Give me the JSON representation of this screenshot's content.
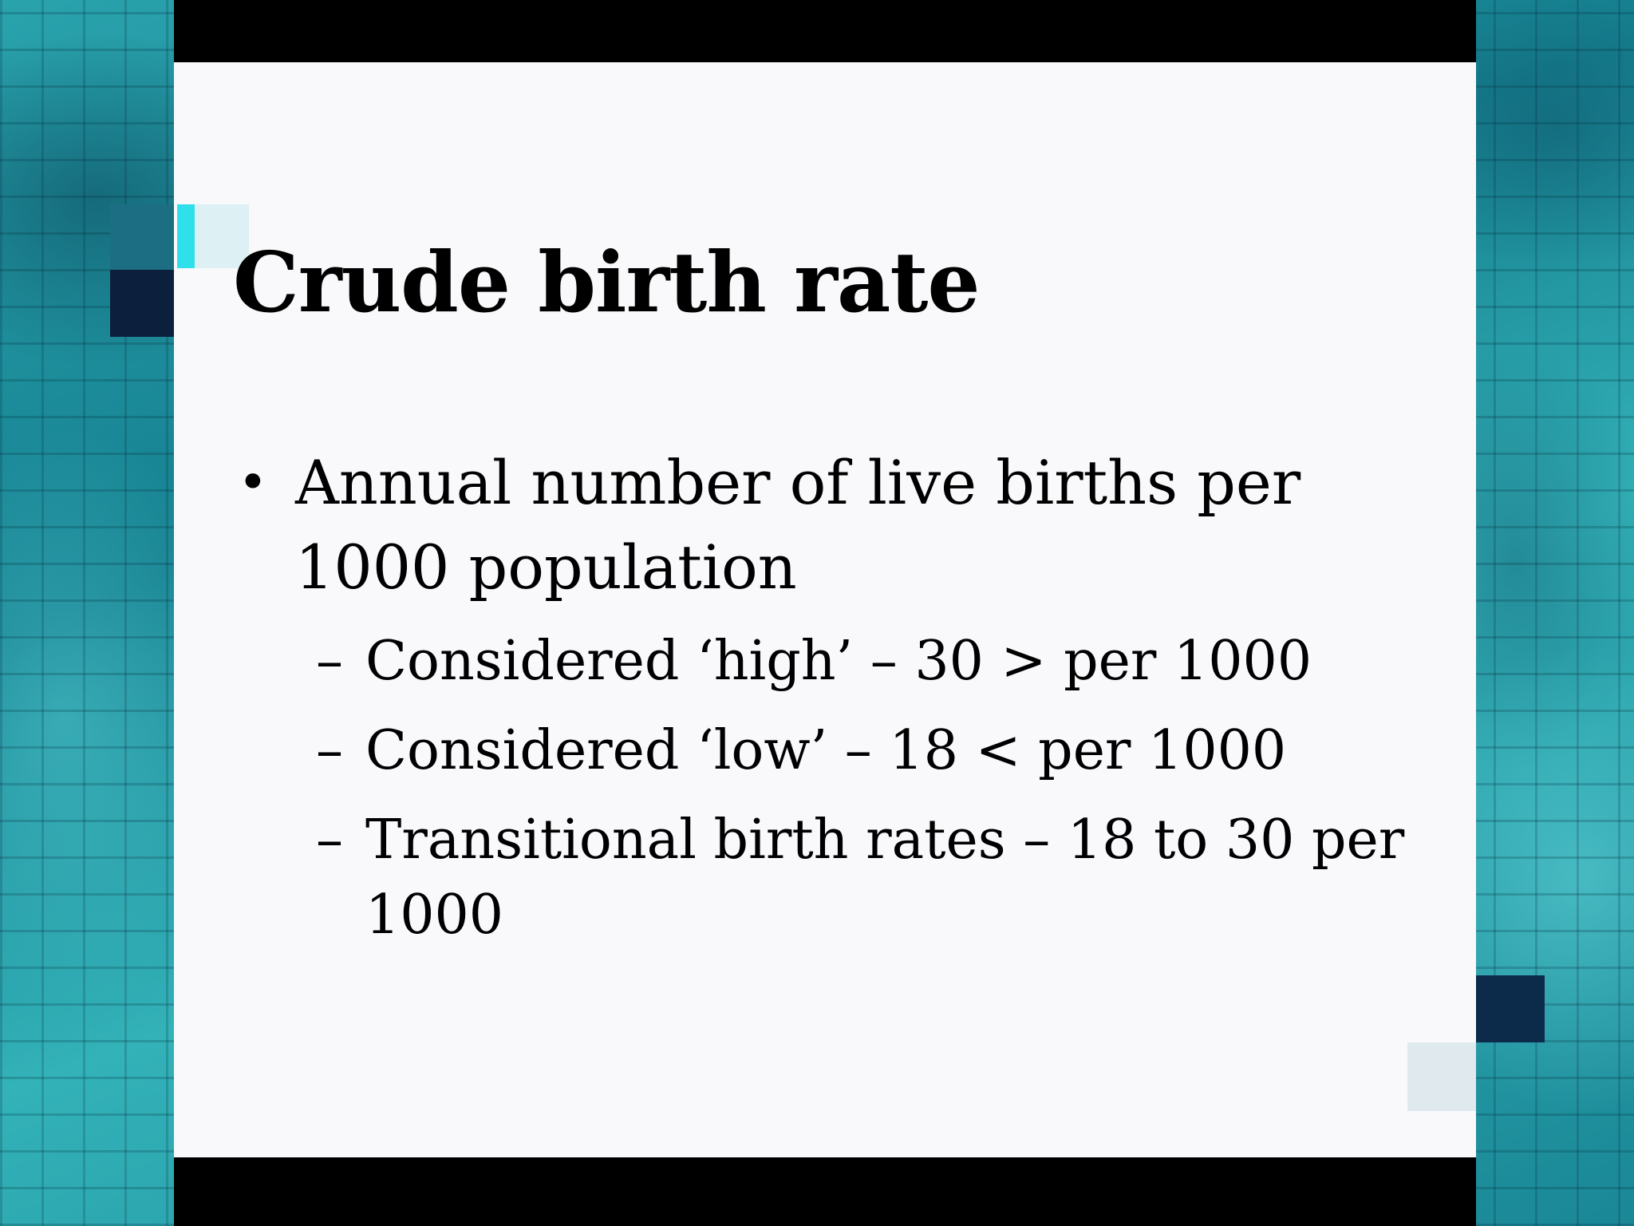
{
  "slide": {
    "title": "Crude birth rate",
    "bullets": [
      {
        "marker": "•",
        "text": "Annual number of live births per 1000 population",
        "subitems": [
          {
            "marker": "–",
            "text": "Considered ‘high’ – 30 > per 1000"
          },
          {
            "marker": "–",
            "text": "Considered ‘low’ – 18 < per 1000"
          },
          {
            "marker": "–",
            "text": "Transitional birth rates – 18 to 30 per 1000"
          }
        ]
      }
    ]
  },
  "colors": {
    "background_teal": "#1f8f9b",
    "slide_background": "#f9f9fc",
    "bars": "#000000",
    "text": "#000000"
  }
}
